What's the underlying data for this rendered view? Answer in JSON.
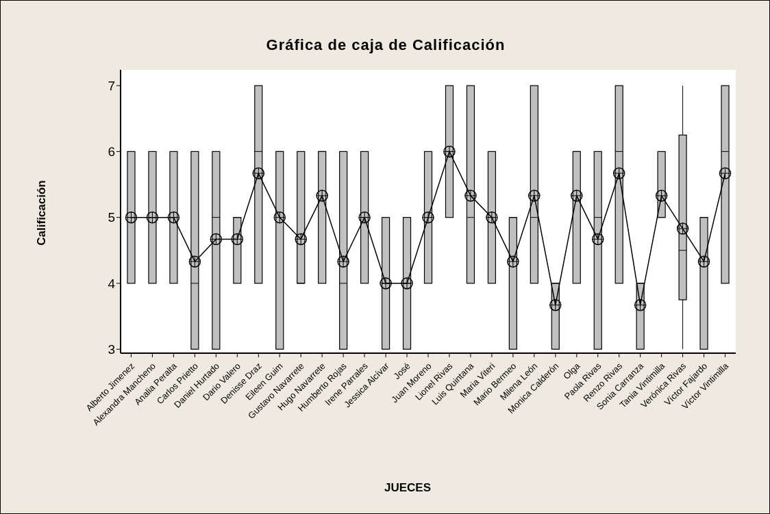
{
  "chart_data": {
    "type": "box",
    "title": "Gráfica de caja de Calificación",
    "xlabel": "JUECES",
    "ylabel": "Calificación",
    "categories": [
      "Alberto Jimenez",
      "Alexandra Mancheno",
      "Analia Peralta",
      "Carlos Prietto",
      "Daniel Hurtado",
      "Dario Valero",
      "Denisse Draz",
      "Eileen Guim",
      "Gustavo Navarrete",
      "Hugo Navarrete",
      "Humberto Rojas",
      "Irene Parrales",
      "Jessica Alcívar",
      "José",
      "Juan Moreno",
      "Lionel Rivas",
      "Luis Quintana",
      "Maria Viteri",
      "Mario Bermeo",
      "Milena León",
      "Monica Calderón",
      "Olga",
      "Paola Rivas",
      "Renzo Rivas",
      "Sonia Carranza",
      "Tania Vintimilla",
      "Verónica Rivas",
      "Víctor Fajardo",
      "Víctor Vintimilla"
    ],
    "ylim": [
      2.94,
      7.24
    ],
    "yticks": [
      3,
      4,
      5,
      6,
      7
    ],
    "marker": "circle",
    "series": [
      {
        "color": "#c0c0c0",
        "boxes": [
          {
            "low": 4,
            "q1": 4,
            "median": 5,
            "q3": 6,
            "high": 6
          },
          {
            "low": 4,
            "q1": 4,
            "median": 5,
            "q3": 6,
            "high": 6
          },
          {
            "low": 4,
            "q1": 4,
            "median": 5,
            "q3": 6,
            "high": 6
          },
          {
            "low": 3,
            "q1": 3,
            "median": 4,
            "q3": 6,
            "high": 6
          },
          {
            "low": 3,
            "q1": 3,
            "median": 5,
            "q3": 6,
            "high": 6
          },
          {
            "low": 4,
            "q1": 4,
            "median": 5,
            "q3": 5,
            "high": 5
          },
          {
            "low": 4,
            "q1": 4,
            "median": 6,
            "q3": 7,
            "high": 7
          },
          {
            "low": 3,
            "q1": 3,
            "median": 6,
            "q3": 6,
            "high": 6
          },
          {
            "low": 4,
            "q1": 4,
            "median": 4,
            "q3": 6,
            "high": 6
          },
          {
            "low": 4,
            "q1": 4,
            "median": 6,
            "q3": 6,
            "high": 6
          },
          {
            "low": 3,
            "q1": 3,
            "median": 4,
            "q3": 6,
            "high": 6
          },
          {
            "low": 4,
            "q1": 4,
            "median": 5,
            "q3": 6,
            "high": 6
          },
          {
            "low": 3,
            "q1": 3,
            "median": 4,
            "q3": 5,
            "high": 5
          },
          {
            "low": 3,
            "q1": 3,
            "median": 4,
            "q3": 5,
            "high": 5
          },
          {
            "low": 4,
            "q1": 4,
            "median": 5,
            "q3": 6,
            "high": 6
          },
          {
            "low": 5,
            "q1": 5,
            "median": 6,
            "q3": 7,
            "high": 7
          },
          {
            "low": 4,
            "q1": 4,
            "median": 5,
            "q3": 7,
            "high": 7
          },
          {
            "low": 4,
            "q1": 4,
            "median": 5,
            "q3": 6,
            "high": 6
          },
          {
            "low": 3,
            "q1": 3,
            "median": 5,
            "q3": 5,
            "high": 5
          },
          {
            "low": 4,
            "q1": 4,
            "median": 5,
            "q3": 7,
            "high": 7
          },
          {
            "low": 3,
            "q1": 3,
            "median": 4,
            "q3": 4,
            "high": 4
          },
          {
            "low": 4,
            "q1": 4,
            "median": 6,
            "q3": 6,
            "high": 6
          },
          {
            "low": 3,
            "q1": 3,
            "median": 5,
            "q3": 6,
            "high": 6
          },
          {
            "low": 4,
            "q1": 4,
            "median": 6,
            "q3": 7,
            "high": 7
          },
          {
            "low": 3,
            "q1": 3,
            "median": 4,
            "q3": 4,
            "high": 4
          },
          {
            "low": 5,
            "q1": 5,
            "median": 5,
            "q3": 6,
            "high": 6
          },
          {
            "low": 3,
            "q1": 3.75,
            "median": 4.5,
            "q3": 6.25,
            "high": 7
          },
          {
            "low": 3,
            "q1": 3,
            "median": 5,
            "q3": 5,
            "high": 5
          },
          {
            "low": 4,
            "q1": 4,
            "median": 6,
            "q3": 7,
            "high": 7
          }
        ]
      },
      {
        "type": "line",
        "color": "#000000",
        "values": [
          5,
          5,
          5,
          4.33,
          4.67,
          4.67,
          5.67,
          5,
          4.67,
          5.33,
          4.33,
          5,
          4,
          4,
          5,
          6,
          5.33,
          5,
          4.33,
          5.33,
          3.67,
          5.33,
          4.67,
          5.67,
          3.67,
          5.33,
          4.83,
          4.33,
          5.67
        ]
      }
    ]
  }
}
